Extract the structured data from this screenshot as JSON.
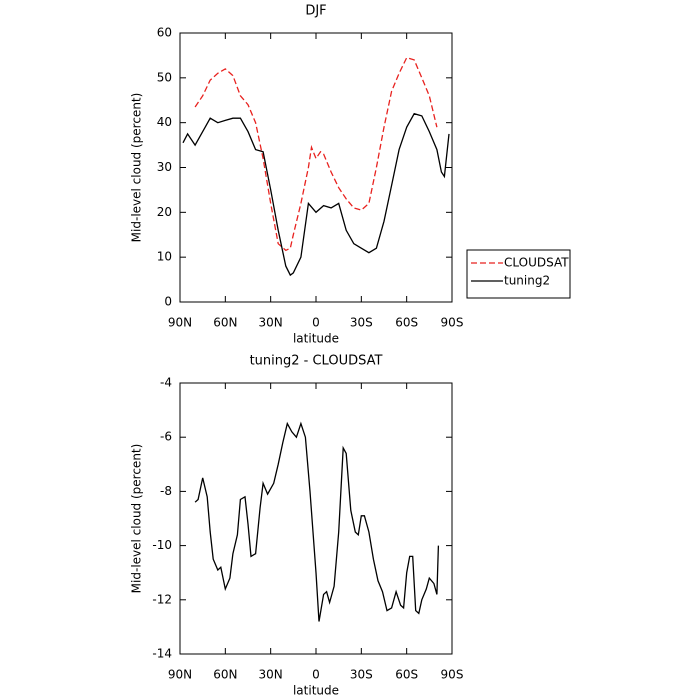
{
  "chart_data": [
    {
      "type": "line",
      "title": "DJF",
      "xlabel": "latitude",
      "ylabel": "Mid-level cloud (percent)",
      "xlim": [
        90,
        -90
      ],
      "xticks": [
        {
          "value": 90,
          "label": "90N"
        },
        {
          "value": 60,
          "label": "60N"
        },
        {
          "value": 30,
          "label": "30N"
        },
        0,
        {
          "value": -30,
          "label": "30S"
        },
        {
          "value": -60,
          "label": "60S"
        },
        {
          "value": -90,
          "label": "90S"
        }
      ],
      "ylim": [
        0,
        60
      ],
      "yticks": [
        0,
        10,
        20,
        30,
        40,
        50,
        60
      ],
      "legend": "right",
      "series": [
        {
          "name": "CLOUDSAT",
          "color": "#e8221f",
          "dash": true,
          "x": [
            80,
            75,
            70,
            65,
            60,
            55,
            50,
            45,
            40,
            35,
            30,
            25,
            20,
            17,
            15,
            10,
            5,
            3,
            0,
            -3,
            -5,
            -10,
            -15,
            -20,
            -25,
            -30,
            -35,
            -40,
            -45,
            -50,
            -55,
            -60,
            -65,
            -70,
            -75,
            -80
          ],
          "values": [
            43.5,
            46,
            49.5,
            51,
            52,
            50.5,
            46,
            44,
            40,
            32,
            22,
            13,
            11.5,
            12,
            15,
            22,
            30,
            34.5,
            32,
            33.5,
            33,
            29,
            25.5,
            23,
            21,
            20.5,
            22,
            30,
            39,
            47,
            51,
            54.5,
            54,
            50,
            46,
            39
          ]
        },
        {
          "name": "tuning2",
          "color": "#000000",
          "dash": false,
          "x": [
            88,
            85,
            80,
            75,
            70,
            65,
            60,
            55,
            50,
            45,
            40,
            35,
            30,
            25,
            20,
            17,
            15,
            10,
            5,
            0,
            -5,
            -10,
            -15,
            -20,
            -25,
            -30,
            -35,
            -40,
            -45,
            -50,
            -55,
            -60,
            -65,
            -70,
            -75,
            -80,
            -83,
            -85,
            -88
          ],
          "values": [
            35.5,
            37.5,
            35,
            38,
            41,
            40,
            40.5,
            41,
            41,
            38,
            34,
            33.5,
            25,
            16,
            8,
            6,
            6.5,
            10,
            22,
            20,
            21.5,
            21,
            22,
            16,
            13,
            12,
            11,
            12,
            18,
            26,
            34,
            39,
            42,
            41.5,
            38,
            34,
            29,
            28,
            37.5
          ]
        }
      ]
    },
    {
      "type": "line",
      "title": "tuning2 - CLOUDSAT",
      "xlabel": "latitude",
      "ylabel": "Mid-level cloud (percent)",
      "xlim": [
        90,
        -90
      ],
      "xticks": [
        {
          "value": 90,
          "label": "90N"
        },
        {
          "value": 60,
          "label": "60N"
        },
        {
          "value": 30,
          "label": "30N"
        },
        0,
        {
          "value": -30,
          "label": "30S"
        },
        {
          "value": -60,
          "label": "60S"
        },
        {
          "value": -90,
          "label": "90S"
        }
      ],
      "ylim": [
        -14,
        -4
      ],
      "yticks": [
        -14,
        -12,
        -10,
        -8,
        -6,
        -4
      ],
      "series": [
        {
          "color": "#000000",
          "dash": false,
          "x": [
            80,
            78,
            75,
            72,
            70,
            68,
            65,
            63,
            60,
            57,
            55,
            52,
            50,
            47,
            45,
            43,
            40,
            37,
            35,
            32,
            28,
            25,
            22,
            19,
            16,
            13,
            10,
            7,
            4,
            0,
            -2,
            -5,
            -7,
            -9,
            -12,
            -15,
            -18,
            -20,
            -23,
            -26,
            -28,
            -30,
            -32,
            -35,
            -38,
            -41,
            -44,
            -47,
            -50,
            -53,
            -56,
            -58,
            -60,
            -62,
            -64,
            -66,
            -68,
            -70,
            -73,
            -75,
            -78,
            -80,
            -81
          ],
          "values": [
            -8.4,
            -8.3,
            -7.5,
            -8.2,
            -9.5,
            -10.5,
            -10.9,
            -10.8,
            -11.6,
            -11.2,
            -10.3,
            -9.6,
            -8.3,
            -8.2,
            -9.2,
            -10.4,
            -10.3,
            -8.6,
            -7.7,
            -8.1,
            -7.7,
            -7,
            -6.2,
            -5.5,
            -5.8,
            -6,
            -5.5,
            -6,
            -8,
            -11,
            -12.8,
            -11.8,
            -11.7,
            -12.1,
            -11.5,
            -9.5,
            -6.4,
            -6.6,
            -8.7,
            -9.5,
            -9.6,
            -8.9,
            -8.9,
            -9.5,
            -10.5,
            -11.3,
            -11.7,
            -12.4,
            -12.3,
            -11.7,
            -12.2,
            -12.3,
            -11,
            -10.4,
            -10.4,
            -12.4,
            -12.5,
            -12,
            -11.6,
            -11.2,
            -11.4,
            -11.8,
            -10
          ]
        }
      ]
    }
  ]
}
